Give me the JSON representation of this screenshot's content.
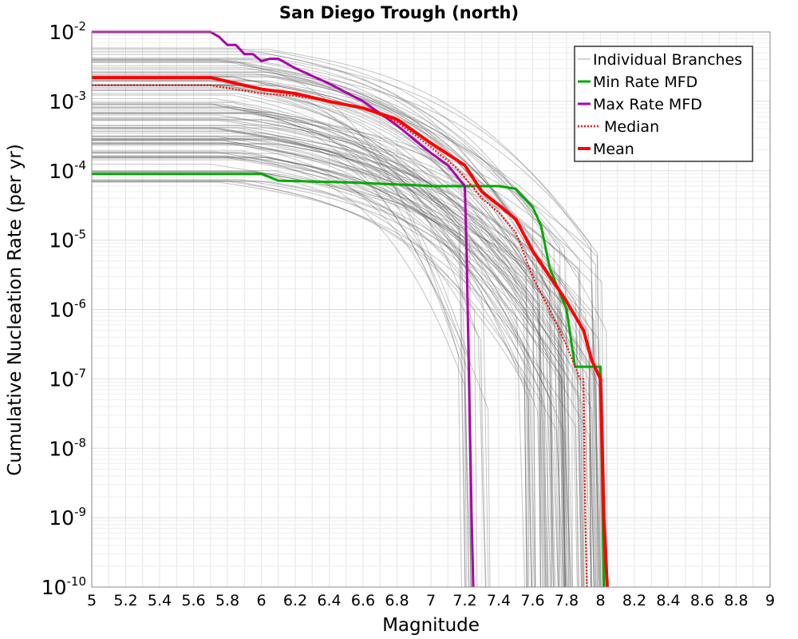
{
  "chart_data": {
    "type": "line",
    "title": "San Diego Trough (north)",
    "xlabel": "Magnitude",
    "ylabel": "Cumulative Nucleation Rate (per yr)",
    "xlim": [
      5,
      9
    ],
    "ylim": [
      1e-10,
      0.01
    ],
    "yscale": "log",
    "grid": true,
    "legend_position": "top-right",
    "x_ticks": [
      "5",
      "5.2",
      "5.4",
      "5.6",
      "5.8",
      "6",
      "6.2",
      "6.4",
      "6.6",
      "6.8",
      "7",
      "7.2",
      "7.4",
      "7.6",
      "7.8",
      "8",
      "8.2",
      "8.4",
      "8.6",
      "8.8",
      "9"
    ],
    "y_ticks": [
      {
        "base": "10",
        "exp": "-2",
        "value": 0.01
      },
      {
        "base": "10",
        "exp": "-3",
        "value": 0.001
      },
      {
        "base": "10",
        "exp": "-4",
        "value": 0.0001
      },
      {
        "base": "10",
        "exp": "-5",
        "value": 1e-05
      },
      {
        "base": "10",
        "exp": "-6",
        "value": 1e-06
      },
      {
        "base": "10",
        "exp": "-7",
        "value": 1e-07
      },
      {
        "base": "10",
        "exp": "-8",
        "value": 1e-08
      },
      {
        "base": "10",
        "exp": "-9",
        "value": 1e-09
      },
      {
        "base": "10",
        "exp": "-10",
        "value": 1e-10
      }
    ],
    "series": [
      {
        "name": "Individual Branches",
        "color": "#555555",
        "style": "thin",
        "values": []
      },
      {
        "name": "Min Rate MFD",
        "color": "#00aa00",
        "style": "solid",
        "x": [
          5.0,
          6.0,
          6.1,
          6.2,
          6.3,
          6.5,
          6.7,
          6.9,
          7.0,
          7.2,
          7.4,
          7.5,
          7.6,
          7.65,
          7.7,
          7.8,
          7.85,
          7.9,
          7.95,
          8.0,
          8.02
        ],
        "y": [
          9e-05,
          9e-05,
          7.2e-05,
          7.1e-05,
          7e-05,
          6.8e-05,
          6.5e-05,
          6.2e-05,
          6e-05,
          6e-05,
          6e-05,
          5.5e-05,
          3e-05,
          1.6e-05,
          4e-06,
          1e-06,
          1.5e-07,
          1.5e-07,
          1.5e-07,
          1.5e-07,
          1e-10
        ]
      },
      {
        "name": "Max Rate MFD",
        "color": "#aa00aa",
        "style": "solid",
        "x": [
          5.0,
          5.7,
          5.75,
          5.8,
          5.85,
          5.9,
          5.95,
          6.0,
          6.05,
          6.1,
          6.2,
          6.4,
          6.6,
          6.8,
          7.0,
          7.1,
          7.2,
          7.21,
          7.24,
          7.25
        ],
        "y": [
          0.01,
          0.01,
          0.0085,
          0.0065,
          0.0065,
          0.0048,
          0.0048,
          0.0038,
          0.0041,
          0.0041,
          0.003,
          0.0018,
          0.001,
          0.00045,
          0.00018,
          0.00012,
          6e-05,
          8e-06,
          1e-09,
          1e-10
        ]
      },
      {
        "name": "Median",
        "color": "#ff0000",
        "style": "dotted",
        "x": [
          5.0,
          5.7,
          6.0,
          6.2,
          6.4,
          6.6,
          6.8,
          7.0,
          7.15,
          7.2,
          7.3,
          7.4,
          7.5,
          7.6,
          7.7,
          7.8,
          7.88,
          7.9,
          7.91,
          7.92
        ],
        "y": [
          0.0017,
          0.0017,
          0.0013,
          0.0012,
          0.001,
          0.0008,
          0.0005,
          0.00022,
          0.00011,
          8e-05,
          4e-05,
          2.5e-05,
          1.3e-05,
          3e-06,
          1e-06,
          3e-07,
          1e-07,
          1e-07,
          1e-09,
          1e-10
        ]
      },
      {
        "name": "Mean",
        "color": "#ff0000",
        "style": "thick",
        "x": [
          5.0,
          5.7,
          6.0,
          6.2,
          6.4,
          6.6,
          6.8,
          7.0,
          7.2,
          7.3,
          7.4,
          7.5,
          7.6,
          7.7,
          7.75,
          7.8,
          7.9,
          7.95,
          8.0,
          8.02,
          8.04
        ],
        "y": [
          0.0022,
          0.0022,
          0.0015,
          0.0013,
          0.001,
          0.0008,
          0.00055,
          0.00025,
          0.00012,
          5e-05,
          3.2e-05,
          2e-05,
          7e-06,
          3e-06,
          2e-06,
          1.3e-06,
          5e-07,
          1.8e-07,
          1e-07,
          1e-09,
          1e-10
        ]
      }
    ]
  }
}
